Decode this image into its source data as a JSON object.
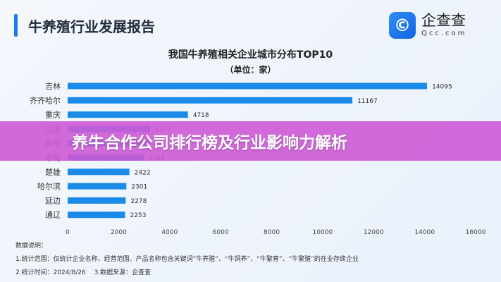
{
  "header": {
    "title": "牛养殖行业发展报告"
  },
  "logo": {
    "icon": "qcc-logo-icon",
    "cn": "企查查",
    "en": "Qcc.com"
  },
  "chart_data": {
    "type": "bar",
    "orientation": "horizontal",
    "title": "我国牛养殖相关企业城市分布TOP10",
    "subtitle": "（单位：家）",
    "categories": [
      "吉林",
      "齐齐哈尔",
      "重庆",
      "吕梁",
      "四平",
      "绥化",
      "楚雄",
      "哈尔滨",
      "延边",
      "通辽"
    ],
    "values": [
      14095,
      11167,
      4718,
      3237,
      3200,
      2981,
      2422,
      2301,
      2278,
      2253
    ],
    "value_labels": [
      "14095",
      "11167",
      "4718",
      "3237",
      "",
      "2981",
      "2422",
      "2301",
      "2278",
      "2253"
    ],
    "xlim": [
      0,
      16000
    ],
    "xticks": [
      "0",
      "2000",
      "4000",
      "6000",
      "8000",
      "10000",
      "12000",
      "14000",
      "16000"
    ],
    "bar_color": "#1a8be8",
    "grid": false
  },
  "banner": {
    "text": "养牛合作公司排行榜及行业影响力解析",
    "color": "#cd5ad7"
  },
  "notes": {
    "heading": "数据说明：",
    "line1": "1.统计范围：仅统计企业名称、经营范围、产品名称包含关键词“牛养殖”、“牛饲养”、“牛繁育”、“牛繁殖”的在业存续企业",
    "line2": "2.统计时间：2024/8/26　 3.数据来源：企查查"
  }
}
